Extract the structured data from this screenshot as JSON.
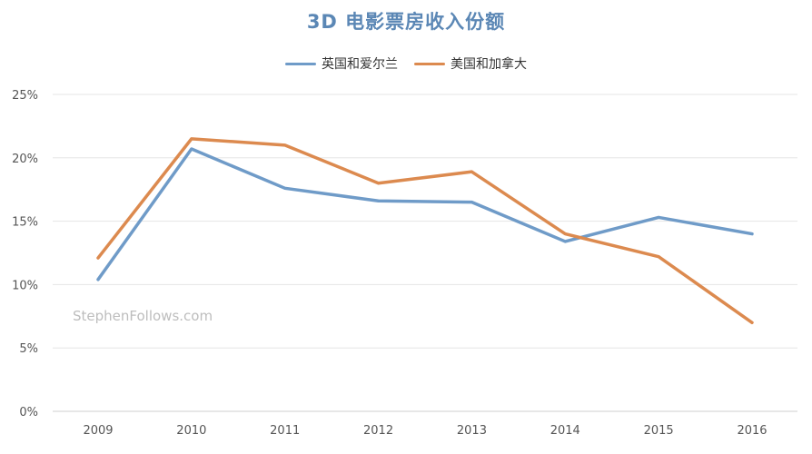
{
  "chart_data": {
    "type": "line",
    "title": "3D 电影票房收入份额",
    "xlabel": "",
    "ylabel": "",
    "categories": [
      "2009",
      "2010",
      "2011",
      "2012",
      "2013",
      "2014",
      "2015",
      "2016"
    ],
    "series": [
      {
        "name": "英国和爱尔兰",
        "color": "#6f9bc8",
        "values": [
          10.4,
          20.7,
          17.6,
          16.6,
          16.5,
          13.4,
          15.3,
          14.0
        ]
      },
      {
        "name": "美国和加拿大",
        "color": "#dc8a4f",
        "values": [
          12.1,
          21.5,
          21.0,
          18.0,
          18.9,
          14.0,
          12.2,
          7.0
        ]
      }
    ],
    "ylim": [
      0,
      25
    ],
    "yticks": [
      0,
      5,
      10,
      15,
      20,
      25
    ],
    "ytick_labels": [
      "0%",
      "5%",
      "10%",
      "15%",
      "20%",
      "25%"
    ],
    "grid": true,
    "legend": "top-center",
    "title_color": "#5b87b5",
    "watermark": "StephenFollows.com"
  }
}
